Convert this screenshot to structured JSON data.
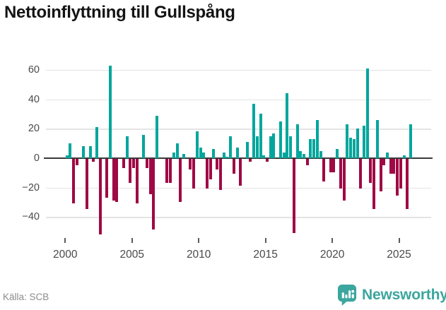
{
  "title": "Nettoinflyttning till Gullspång",
  "footer": {
    "source": "Källa: SCB",
    "brand": "Newsworthy"
  },
  "colors": {
    "positive": "#00a69c",
    "negative": "#9f0945",
    "grid": "#e4e4e4",
    "zero_line": "#3a3a3a",
    "axis_text": "#4a4a4a",
    "title_text": "#141414",
    "source_text": "#8c8c8c",
    "brand": "#3ba69e"
  },
  "chart_data": {
    "type": "bar",
    "title": "Nettoinflyttning till Gullspång",
    "frequency": "quarterly",
    "start_year": 2000,
    "x_tick_labels": [
      "2000",
      "2005",
      "2010",
      "2015",
      "2020",
      "2025"
    ],
    "y_ticks": [
      60,
      40,
      20,
      0,
      -20,
      -40
    ],
    "ylim": [
      -55,
      68
    ],
    "grid": "horizontal",
    "legend": "none",
    "series": [
      {
        "name": "Nettoinflyttning",
        "values": [
          2,
          10,
          -30,
          -4,
          0,
          8,
          -34,
          8,
          -2,
          21,
          -51,
          0,
          -26,
          63,
          -28,
          -29,
          0,
          -6,
          15,
          -16,
          -6,
          -30,
          0,
          16,
          -6,
          -24,
          -48,
          29,
          0,
          0,
          -16,
          -16,
          4,
          10,
          -29,
          3,
          0,
          -7,
          -20,
          18,
          7,
          4,
          -20,
          -14,
          6,
          -7,
          -21,
          4,
          1,
          15,
          -10,
          7,
          -18,
          0,
          11,
          -2,
          37,
          15,
          30,
          2,
          -2,
          15,
          17,
          0,
          25,
          4,
          44,
          15,
          -50,
          23,
          5,
          3,
          -4,
          13,
          13,
          26,
          5,
          -15,
          0,
          -9,
          -9,
          6,
          -20,
          -28,
          23,
          14,
          13,
          20,
          -20,
          22,
          61,
          -16,
          -34,
          26,
          -22,
          -4,
          4,
          -10,
          -10,
          -25,
          -20,
          2,
          -34,
          23
        ]
      }
    ]
  }
}
